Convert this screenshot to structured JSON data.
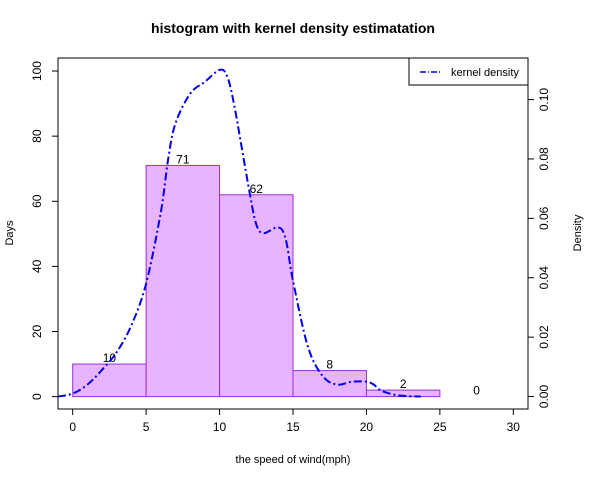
{
  "chart_data": {
    "type": "bar",
    "title": "histogram with kernel density estimatation",
    "xlabel": "the speed of wind(mph)",
    "ylabel": "Days",
    "y2label": "Density",
    "bins": [
      {
        "from": 0,
        "to": 5,
        "count": 10,
        "label": "10"
      },
      {
        "from": 5,
        "to": 10,
        "count": 71,
        "label": "71"
      },
      {
        "from": 10,
        "to": 15,
        "count": 62,
        "label": "62"
      },
      {
        "from": 15,
        "to": 20,
        "count": 8,
        "label": "8"
      },
      {
        "from": 20,
        "to": 25,
        "count": 2,
        "label": "2"
      },
      {
        "from": 25,
        "to": 30,
        "count": 0,
        "label": "0"
      }
    ],
    "xlim": [
      -1,
      31
    ],
    "ylim": [
      -3.8,
      104
    ],
    "y2lim": [
      -0.0042,
      0.114
    ],
    "xticks": [
      0,
      5,
      10,
      15,
      20,
      25,
      30
    ],
    "xtick_labels": [
      "0",
      "5",
      "10",
      "15",
      "20",
      "25",
      "30"
    ],
    "yticks": [
      0,
      20,
      40,
      60,
      80,
      100
    ],
    "ytick_labels": [
      "0",
      "20",
      "40",
      "60",
      "80",
      "100"
    ],
    "y2ticks": [
      0,
      0.02,
      0.04,
      0.06,
      0.08,
      0.1
    ],
    "y2tick_labels": [
      "0.00",
      "0.02",
      "0.04",
      "0.06",
      "0.08",
      "0.10"
    ],
    "series": [
      {
        "name": "kernel density",
        "x": [
          -1,
          0,
          1,
          2,
          3,
          4,
          5,
          6,
          6.5,
          7,
          8,
          9,
          10,
          10.5,
          11,
          12,
          12.5,
          13,
          14,
          14.5,
          15,
          16,
          17,
          18,
          19,
          20,
          20.5,
          21,
          22,
          23,
          23.7
        ],
        "y": [
          0.0,
          0.001,
          0.004,
          0.009,
          0.015,
          0.024,
          0.038,
          0.062,
          0.08,
          0.092,
          0.102,
          0.106,
          0.11,
          0.108,
          0.098,
          0.07,
          0.058,
          0.055,
          0.057,
          0.053,
          0.039,
          0.017,
          0.007,
          0.004,
          0.005,
          0.005,
          0.004,
          0.002,
          0.0005,
          0.0001,
          0.0
        ]
      }
    ],
    "legend_position": "top-right",
    "grid": false,
    "colors": {
      "bar_fill": "#e8b3ff",
      "bar_stroke": "#9b30d9",
      "density_line": "#0000ee",
      "axis": "#000000"
    }
  }
}
